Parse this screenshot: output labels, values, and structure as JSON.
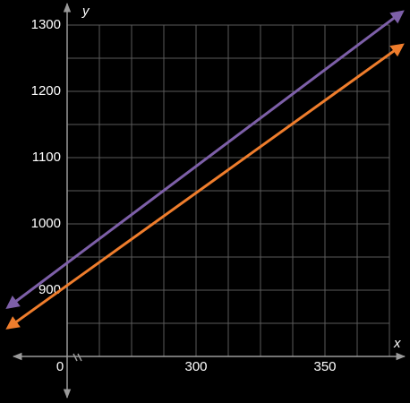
{
  "chart_data": {
    "type": "line",
    "x_label": "x",
    "y_label": "y",
    "x": [
      227,
      380
    ],
    "series": [
      {
        "color": "#7d5fa8",
        "values": [
          874,
          1320
        ]
      },
      {
        "color": "#ef7d2c",
        "values": [
          843,
          1270
        ]
      }
    ],
    "xlim": [
      250,
      375
    ],
    "ylim": [
      800,
      1300
    ],
    "xticks": [
      {
        "value": 250,
        "label": "0"
      },
      300,
      350
    ],
    "yticks": [
      900,
      1000,
      1100,
      1200,
      1300
    ],
    "grid": true
  }
}
